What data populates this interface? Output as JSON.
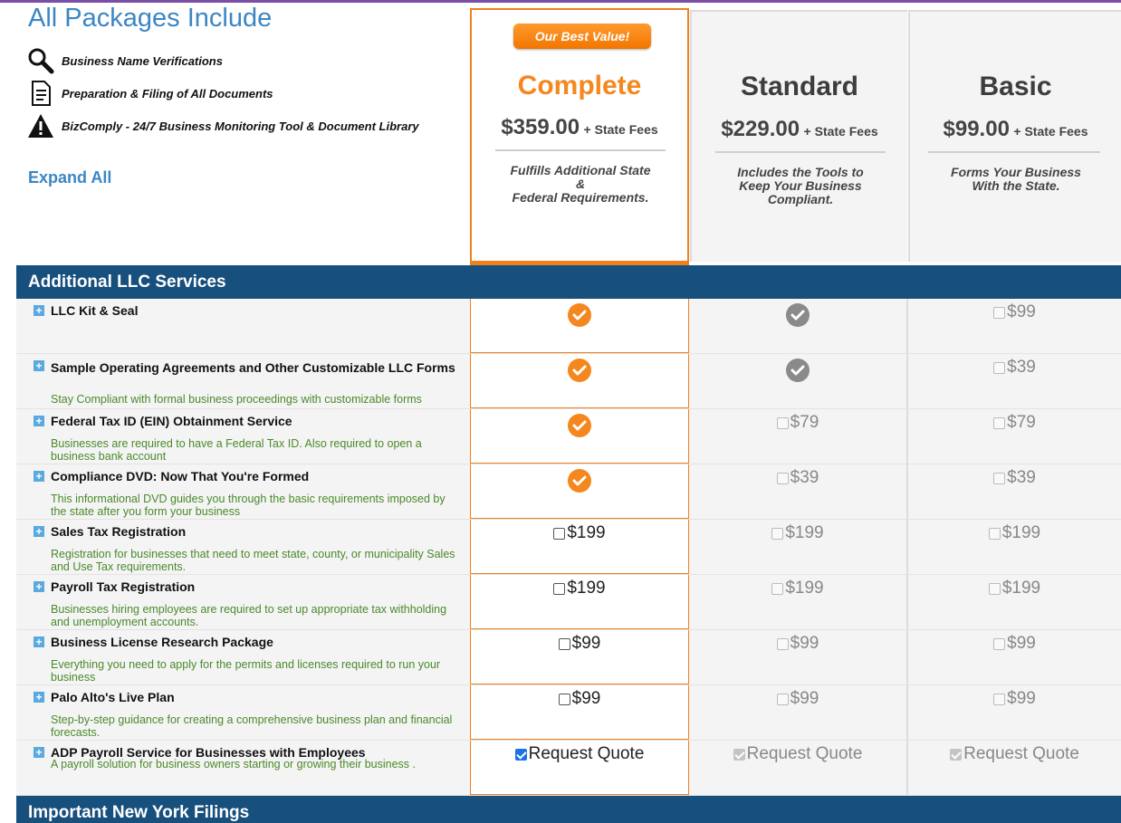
{
  "header": {
    "title": "All Packages Include",
    "features": [
      {
        "icon": "magnifier-icon",
        "text": "Business Name Verifications"
      },
      {
        "icon": "document-icon",
        "text": "Preparation & Filing of All Documents"
      },
      {
        "icon": "warning-icon",
        "text": "BizComply - 24/7 Business Monitoring Tool & Document Library"
      }
    ],
    "expand_all": "Expand All"
  },
  "packages": {
    "complete": {
      "badge": "Our Best Value!",
      "name": "Complete",
      "price": "$359.00",
      "fees": "+ State Fees",
      "desc": "Fulfills Additional State\n&\nFederal Requirements."
    },
    "standard": {
      "name": "Standard",
      "price": "$229.00",
      "fees": "+ State Fees",
      "desc": "Includes the Tools to\nKeep Your Business\nCompliant."
    },
    "basic": {
      "name": "Basic",
      "price": "$99.00",
      "fees": "+ State Fees",
      "desc": "Forms Your Business\nWith the State."
    }
  },
  "sections": {
    "additional": "Additional LLC Services",
    "ny": "Important New York Filings"
  },
  "services": [
    {
      "name": "LLC Kit & Seal",
      "desc": "",
      "complete": "included",
      "standard": "included",
      "basic": "$99"
    },
    {
      "name": "Sample Operating Agreements and Other Customizable LLC Forms",
      "desc": "Stay Compliant with formal business proceedings with customizable forms",
      "complete": "included",
      "standard": "included",
      "basic": "$39"
    },
    {
      "name": "Federal Tax ID (EIN) Obtainment Service",
      "desc": "Businesses are required to have a Federal Tax ID. Also required to open a business bank account",
      "complete": "included",
      "standard": "$79",
      "basic": "$79"
    },
    {
      "name": "Compliance DVD: Now That You're Formed",
      "desc": "This informational DVD guides you through the basic requirements imposed by the state after you form your business",
      "complete": "included",
      "standard": "$39",
      "basic": "$39"
    },
    {
      "name": "Sales Tax Registration",
      "desc": "Registration for businesses that need to meet state, county, or municipality Sales and Use Tax requirements.",
      "complete": "$199",
      "standard": "$199",
      "basic": "$199"
    },
    {
      "name": "Payroll Tax Registration",
      "desc": "Businesses hiring employees are required to set up appropriate tax withholding and unemployment accounts.",
      "complete": "$199",
      "standard": "$199",
      "basic": "$199"
    },
    {
      "name": "Business License Research Package",
      "desc": "Everything you need to apply for the permits and licenses required to run your business",
      "complete": "$99",
      "standard": "$99",
      "basic": "$99"
    },
    {
      "name": "Palo Alto's Live Plan",
      "desc": "Step-by-step guidance for creating a comprehensive business plan and financial forecasts.",
      "complete": "$99",
      "standard": "$99",
      "basic": "$99"
    },
    {
      "name": "ADP Payroll Service for Businesses with Employees",
      "desc": "A payroll solution for business owners starting or growing their business .",
      "complete": "Request Quote",
      "standard": "Request Quote",
      "basic": "Request Quote"
    }
  ],
  "colors": {
    "accent": "#f5871f",
    "section": "#174f7d",
    "link": "#3b86c4",
    "desc": "#4a8a2a"
  }
}
